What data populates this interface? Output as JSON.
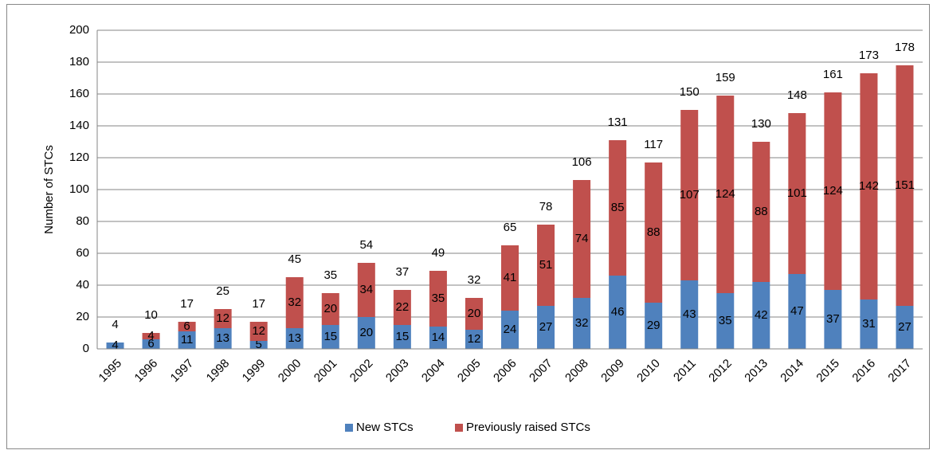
{
  "chart_data": {
    "type": "stacked_bar",
    "y_label": "Number of STCs",
    "categories": [
      "1995",
      "1996",
      "1997",
      "1998",
      "1999",
      "2000",
      "2001",
      "2002",
      "2003",
      "2004",
      "2005",
      "2006",
      "2007",
      "2008",
      "2009",
      "2010",
      "2011",
      "2012",
      "2013",
      "2014",
      "2015",
      "2016",
      "2017"
    ],
    "series": [
      {
        "name": "New STCs",
        "color": "#4f81bd",
        "values": [
          4,
          6,
          11,
          13,
          5,
          13,
          15,
          20,
          15,
          14,
          12,
          24,
          27,
          32,
          46,
          29,
          43,
          35,
          42,
          47,
          37,
          31,
          27
        ]
      },
      {
        "name": "Previously raised STCs",
        "color": "#c0504d",
        "values": [
          0,
          4,
          6,
          12,
          12,
          32,
          20,
          34,
          22,
          35,
          20,
          41,
          51,
          74,
          85,
          88,
          107,
          124,
          88,
          101,
          124,
          142,
          151
        ]
      }
    ],
    "totals": [
      4,
      10,
      17,
      25,
      17,
      45,
      35,
      54,
      37,
      49,
      32,
      65,
      78,
      106,
      131,
      117,
      150,
      159,
      130,
      148,
      161,
      173,
      178
    ],
    "ylim": [
      0,
      200
    ],
    "yticks": [
      0,
      20,
      40,
      60,
      80,
      100,
      120,
      140,
      160,
      180,
      200
    ],
    "grid": true,
    "legend": "bottom"
  }
}
